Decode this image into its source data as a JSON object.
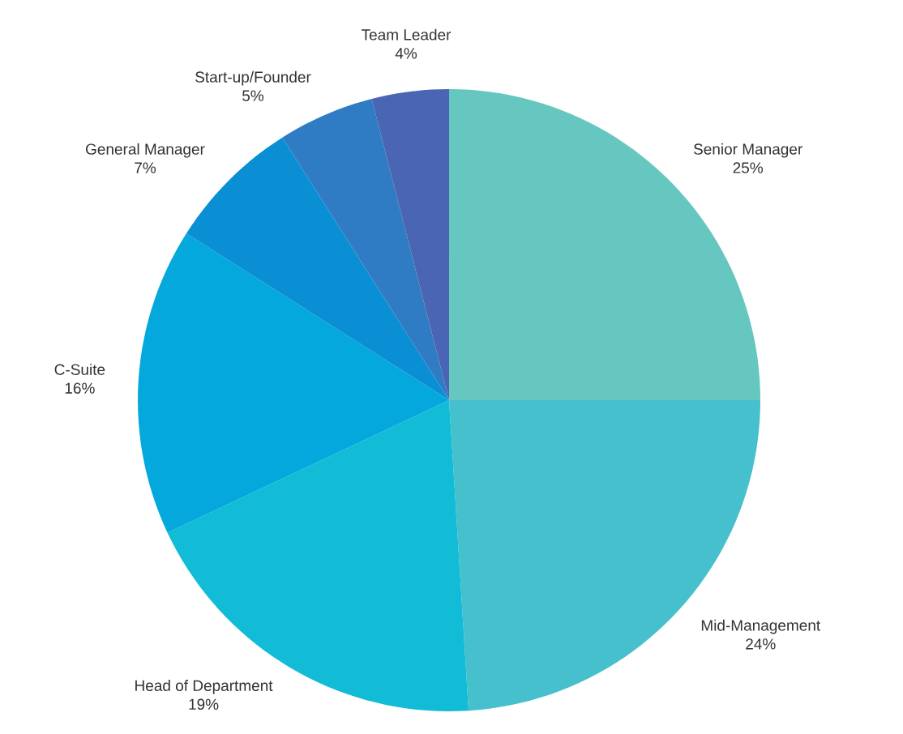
{
  "chart_data": {
    "type": "pie",
    "categories": [
      "Senior Manager",
      "Mid-Management",
      "Head of Department",
      "C-Suite",
      "General Manager",
      "Start-up/Founder",
      "Team Leader"
    ],
    "values": [
      25,
      24,
      19,
      16,
      7,
      5,
      4
    ],
    "value_labels": [
      "25%",
      "24%",
      "19%",
      "16%",
      "7%",
      "5%",
      "4%"
    ],
    "colors": [
      "#66c6c0",
      "#45c0cc",
      "#12bbd6",
      "#04a8dc",
      "#0a8fd4",
      "#2f7cc4",
      "#4a65b3"
    ],
    "legend": false
  }
}
